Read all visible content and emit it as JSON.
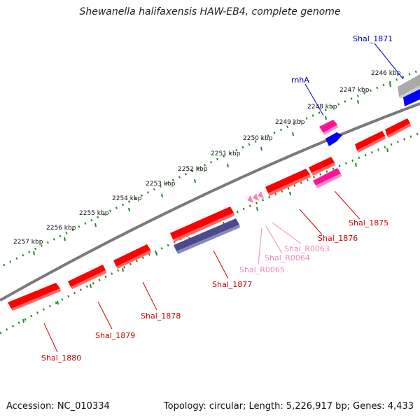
{
  "title": "Shewanella halifaxensis HAW-EB4, complete genome",
  "footer": {
    "accession": "Accession: NC_010334",
    "summary": "Topology: circular; Length: 5,226,917 bp; Genes: 4,433"
  },
  "colors": {
    "backbone": "#808080",
    "ruler": "#228b22",
    "cds_red": "#ff0000",
    "cds_dark": "#4b4a8c",
    "cds_magenta": "#ff1493",
    "cds_blue": "#0000ff",
    "cds_gray": "#aaaaaa",
    "label_red": "#cc0000",
    "label_pink": "#ee88bb",
    "label_blue": "#0000aa"
  },
  "ticks": [
    {
      "label": "2257 kbp"
    },
    {
      "label": "2256 kbp"
    },
    {
      "label": "2255 kbp"
    },
    {
      "label": "2254 kbp"
    },
    {
      "label": "2253 kbp"
    },
    {
      "label": "2252 kbp"
    },
    {
      "label": "2251 kbp"
    },
    {
      "label": "2250 kbp"
    },
    {
      "label": "2249 kbp"
    },
    {
      "label": "2248 kbp"
    },
    {
      "label": "2247 kbp"
    },
    {
      "label": "2246 kbp"
    }
  ],
  "features": [
    {
      "name": "Shal_1871",
      "color": "blue"
    },
    {
      "name": "rnhA",
      "color": "blue"
    },
    {
      "name": "Shal_1875",
      "color": "red"
    },
    {
      "name": "Shal_1876",
      "color": "red"
    },
    {
      "name": "Shal_R0063",
      "color": "pink"
    },
    {
      "name": "Shal_R0064",
      "color": "pink"
    },
    {
      "name": "Shal_R0065",
      "color": "pink"
    },
    {
      "name": "Shal_1877",
      "color": "red"
    },
    {
      "name": "Shal_1878",
      "color": "red"
    },
    {
      "name": "Shal_1879",
      "color": "red"
    },
    {
      "name": "Shal_1880",
      "color": "red"
    }
  ]
}
